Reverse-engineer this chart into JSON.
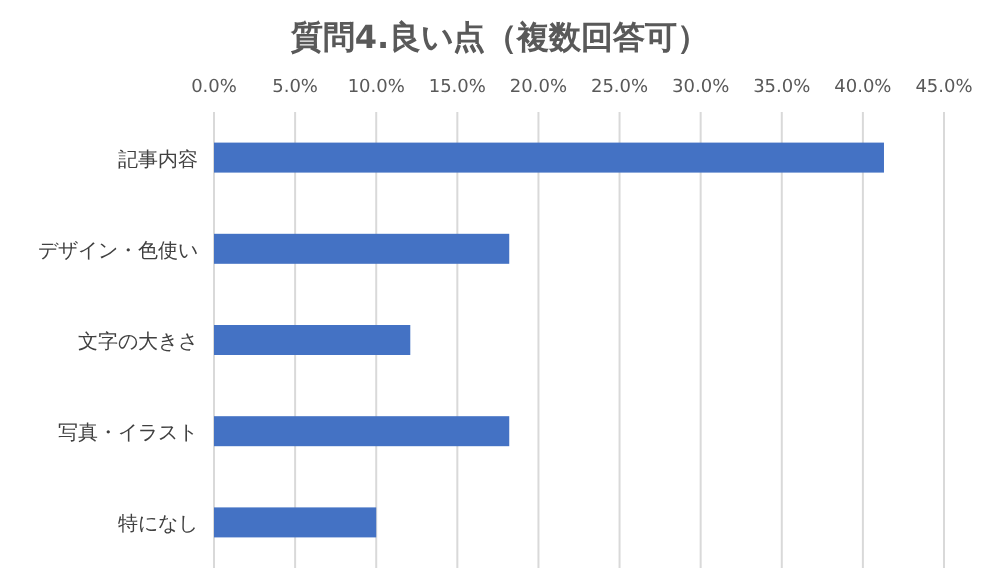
{
  "chart_data": {
    "type": "bar",
    "orientation": "horizontal",
    "title": "質問4.良い点（複数回答可）",
    "categories": [
      "記事内容",
      "デザイン・色使い",
      "文字の大きさ",
      "写真・イラスト",
      "特になし"
    ],
    "values": [
      41.3,
      18.2,
      12.1,
      18.2,
      10.0
    ],
    "color": "#4472c4",
    "grid": "x",
    "xlim": [
      0,
      45
    ],
    "xticks": [
      {
        "value": 0,
        "label": "0.0%"
      },
      {
        "value": 5,
        "label": "5.0%"
      },
      {
        "value": 10,
        "label": "10.0%"
      },
      {
        "value": 15,
        "label": "15.0%"
      },
      {
        "value": 20,
        "label": "20.0%"
      },
      {
        "value": 25,
        "label": "25.0%"
      },
      {
        "value": 30,
        "label": "30.0%"
      },
      {
        "value": 35,
        "label": "35.0%"
      },
      {
        "value": 40,
        "label": "40.0%"
      },
      {
        "value": 45,
        "label": "45.0%"
      }
    ]
  }
}
